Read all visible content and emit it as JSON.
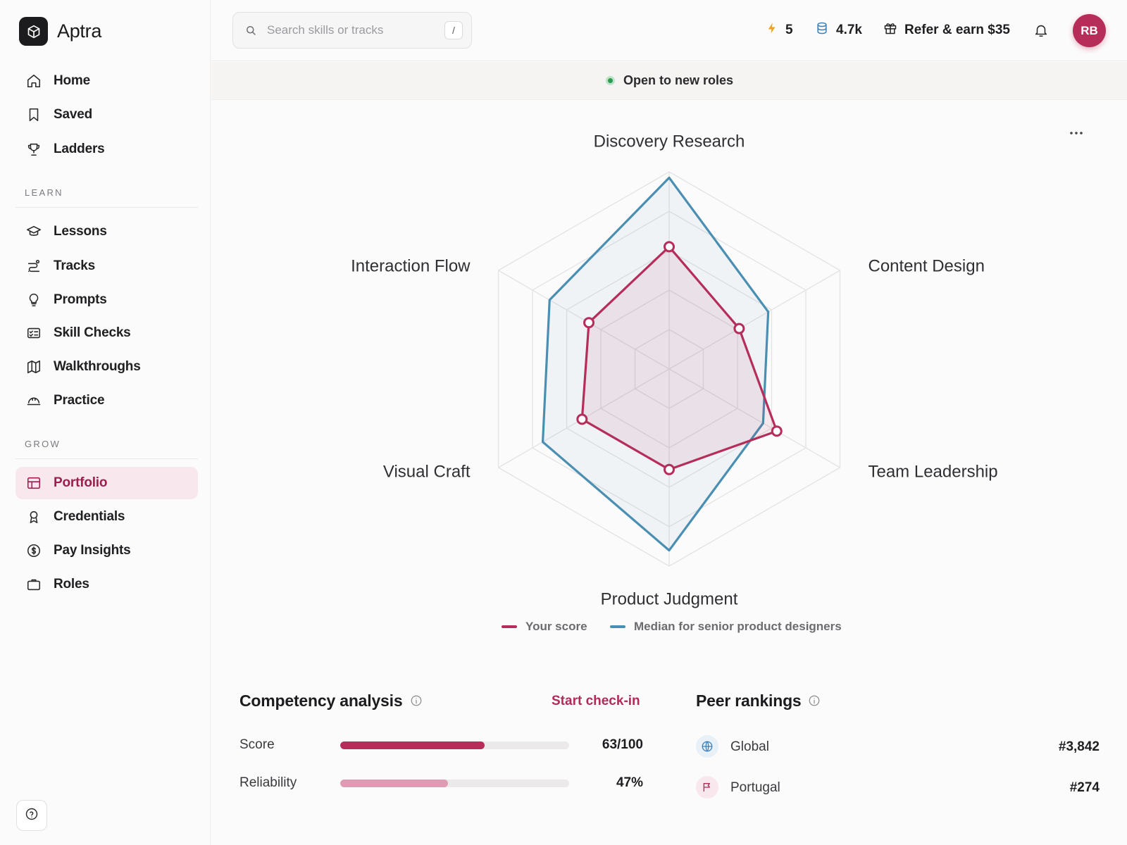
{
  "brand": {
    "name": "Aptra"
  },
  "nav": {
    "top": [
      {
        "label": "Home",
        "icon": "home-icon"
      },
      {
        "label": "Saved",
        "icon": "bookmark-icon"
      },
      {
        "label": "Ladders",
        "icon": "trophy-icon"
      }
    ],
    "learn_label": "LEARN",
    "learn": [
      {
        "label": "Lessons",
        "icon": "graduation-cap-icon"
      },
      {
        "label": "Tracks",
        "icon": "route-icon"
      },
      {
        "label": "Prompts",
        "icon": "lightbulb-icon"
      },
      {
        "label": "Skill Checks",
        "icon": "checklist-card-icon"
      },
      {
        "label": "Walkthroughs",
        "icon": "map-icon"
      },
      {
        "label": "Practice",
        "icon": "hard-hat-icon"
      }
    ],
    "grow_label": "GROW",
    "grow": [
      {
        "label": "Portfolio",
        "icon": "layout-icon",
        "active": true
      },
      {
        "label": "Credentials",
        "icon": "award-icon"
      },
      {
        "label": "Pay Insights",
        "icon": "dollar-circle-icon"
      },
      {
        "label": "Roles",
        "icon": "briefcase-icon"
      }
    ]
  },
  "topbar": {
    "search_placeholder": "Search skills or tracks",
    "search_shortcut": "/",
    "streak": "5",
    "credits": "4.7k",
    "referral": "Refer & earn $35",
    "avatar_initials": "RB"
  },
  "status": {
    "text": "Open to new roles"
  },
  "chart_data": {
    "type": "radar",
    "axes": [
      "Discovery Research",
      "Content Design",
      "Team Leadership",
      "Product Judgment",
      "Visual Craft",
      "Interaction Flow"
    ],
    "range": [
      0,
      100
    ],
    "rings": 5,
    "series": [
      {
        "name": "Your score",
        "values": [
          62,
          41,
          63,
          51,
          51,
          47
        ],
        "color": "#b52d5a"
      },
      {
        "name": "Median for senior product designers",
        "values": [
          97,
          58,
          55,
          92,
          74,
          70
        ],
        "color": "#4a8fb2"
      }
    ]
  },
  "competency": {
    "title": "Competency analysis",
    "action": "Start check-in",
    "metrics": [
      {
        "label": "Score",
        "value": "63/100",
        "fraction": 0.63,
        "color": "#b82c5a"
      },
      {
        "label": "Reliability",
        "value": "47%",
        "fraction": 0.47,
        "color": "#df9bb4"
      }
    ]
  },
  "rankings": {
    "title": "Peer rankings",
    "items": [
      {
        "label": "Global",
        "value": "#3,842",
        "icon": "globe-icon"
      },
      {
        "label": "Portugal",
        "value": "#274",
        "icon": "flag-icon"
      }
    ]
  }
}
